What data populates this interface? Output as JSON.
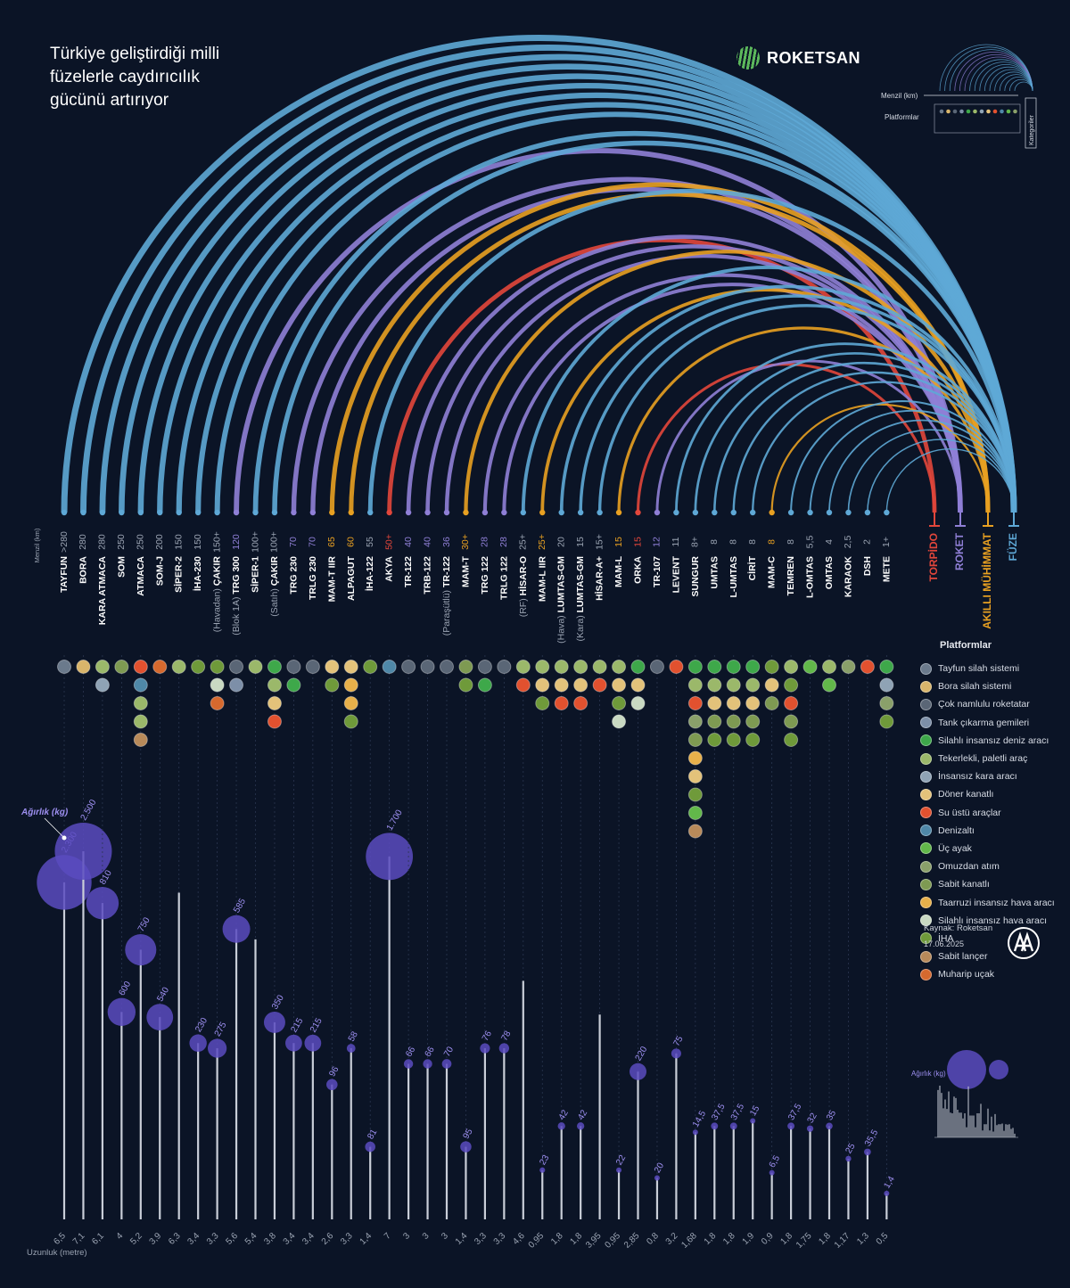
{
  "title": "Türkiye geliştirdiği milli\nfüzelerle caydırıcılık\ngücünü artırıyor",
  "brand": "ROKETSAN",
  "colors": {
    "background": "#0b1426",
    "fuze": "#5ea8d6",
    "roket": "#8f7fd6",
    "akilli_muhimmat": "#e8a021",
    "torpido": "#e2463b",
    "weight_bubble": "#5b4bbf",
    "length_line": "#c9ced8"
  },
  "key": {
    "range_label": "Menzil (km)",
    "platforms_label": "Platformlar",
    "categories_label": "Kategoriler",
    "weight_label": "Ağırlık (kg)"
  },
  "range_axis_label": "Menzil (km)",
  "length_axis_label": "Uzunluk (metre)",
  "weight_annotation": "Ağırlık (kg)",
  "categories": [
    {
      "name": "TORPİDO",
      "color": "#e2463b"
    },
    {
      "name": "ROKET",
      "color": "#8f7fd6"
    },
    {
      "name": "AKILLI MÜHİMMAT",
      "color": "#e8a021"
    },
    {
      "name": "FÜZE",
      "color": "#5ea8d6"
    }
  ],
  "platform_legend_title": "Platformlar",
  "platforms": [
    {
      "label": "Tayfun silah sistemi",
      "color": "#6b7a8c"
    },
    {
      "label": "Bora silah sistemi",
      "color": "#d9b56b"
    },
    {
      "label": "Çok namlulu roketatar",
      "color": "#5a6676"
    },
    {
      "label": "Tank çıkarma gemileri",
      "color": "#7d8fa8"
    },
    {
      "label": "Silahlı insansız deniz aracı",
      "color": "#3ea84a"
    },
    {
      "label": "Tekerlekli, paletli araç",
      "color": "#9bb86a"
    },
    {
      "label": "İnsansız kara aracı",
      "color": "#8fa3b5"
    },
    {
      "label": "Döner kanatlı",
      "color": "#e3c27a"
    },
    {
      "label": "Su üstü araçlar",
      "color": "#e2512f"
    },
    {
      "label": "Denizaltı",
      "color": "#4f88a8"
    },
    {
      "label": "Üç ayak",
      "color": "#62b84a"
    },
    {
      "label": "Omuzdan atım",
      "color": "#8aa06a"
    },
    {
      "label": "Sabit kanatlı",
      "color": "#7e9a52"
    },
    {
      "label": "Taarruzi insansız hava aracı",
      "color": "#e8b04a"
    },
    {
      "label": "Silahlı insansız hava aracı",
      "color": "#c9d9c2"
    },
    {
      "label": "İHA",
      "color": "#6f9a3a"
    },
    {
      "label": "Sabit lançer",
      "color": "#b88a5a"
    },
    {
      "label": "Muharip uçak",
      "color": "#d6692e"
    }
  ],
  "chart_data": {
    "type": "scatter",
    "title": "Türkiye geliştirdiği milli füzelerle caydırıcılık gücünü artırıyor",
    "xlabel": "",
    "ylabel": "Uzunluk (metre)",
    "series_fields": [
      "name",
      "prefix",
      "range",
      "length",
      "weight",
      "category"
    ],
    "items": [
      {
        "name": "TAYFUN",
        "prefix": "",
        "range": ">280",
        "length": "6,5",
        "weight": "2.300",
        "category": "FÜZE",
        "platforms": [
          0
        ]
      },
      {
        "name": "BORA",
        "prefix": "",
        "range": "280",
        "length": "7,1",
        "weight": "2.500",
        "category": "FÜZE",
        "platforms": [
          1
        ]
      },
      {
        "name": "KARA ATMACA",
        "prefix": "",
        "range": "280",
        "length": "6,1",
        "weight": "810",
        "category": "FÜZE",
        "platforms": [
          5,
          6
        ]
      },
      {
        "name": "SOM",
        "prefix": "",
        "range": "250",
        "length": "4",
        "weight": "600",
        "category": "FÜZE",
        "platforms": [
          12
        ]
      },
      {
        "name": "ATMACA",
        "prefix": "",
        "range": "250",
        "length": "5,2",
        "weight": "750",
        "category": "FÜZE",
        "platforms": [
          8,
          9,
          5,
          5,
          16
        ]
      },
      {
        "name": "SOM-J",
        "prefix": "",
        "range": "200",
        "length": "3,9",
        "weight": "540",
        "category": "FÜZE",
        "platforms": [
          17
        ]
      },
      {
        "name": "SİPER-2",
        "prefix": "",
        "range": "150",
        "length": "6,3",
        "weight": "",
        "category": "FÜZE",
        "platforms": [
          5
        ]
      },
      {
        "name": "İHA-230",
        "prefix": "",
        "range": "150",
        "length": "3,4",
        "weight": "230",
        "category": "FÜZE",
        "platforms": [
          15
        ]
      },
      {
        "name": "ÇAKIR",
        "prefix": "(Havadan)",
        "range": "150+",
        "length": "3,3",
        "weight": "275",
        "category": "FÜZE",
        "platforms": [
          15,
          14,
          17
        ]
      },
      {
        "name": "TRG 300",
        "prefix": "(Blok 1A)",
        "range": "120",
        "length": "5,6",
        "weight": "585",
        "category": "ROKET",
        "platforms": [
          2,
          3
        ]
      },
      {
        "name": "SİPER-1",
        "prefix": "",
        "range": "100+",
        "length": "5,4",
        "weight": "",
        "category": "FÜZE",
        "platforms": [
          5
        ]
      },
      {
        "name": "ÇAKIR",
        "prefix": "(Satıh)",
        "range": "100+",
        "length": "3,8",
        "weight": "350",
        "category": "FÜZE",
        "platforms": [
          4,
          5,
          7,
          8
        ]
      },
      {
        "name": "TRG 230",
        "prefix": "",
        "range": "70",
        "length": "3,4",
        "weight": "215",
        "category": "ROKET",
        "platforms": [
          2,
          4
        ]
      },
      {
        "name": "TRLG 230",
        "prefix": "",
        "range": "70",
        "length": "3,4",
        "weight": "215",
        "category": "ROKET",
        "platforms": [
          2
        ]
      },
      {
        "name": "MAM-T IIR",
        "prefix": "",
        "range": "65",
        "length": "2,6",
        "weight": "96",
        "category": "AKILLI MÜHİMMAT",
        "platforms": [
          7,
          15
        ]
      },
      {
        "name": "ALPAGUT",
        "prefix": "",
        "range": "60",
        "length": "3,3",
        "weight": "58",
        "category": "AKILLI MÜHİMMAT",
        "platforms": [
          7,
          13,
          13,
          15
        ]
      },
      {
        "name": "İHA-122",
        "prefix": "",
        "range": "55",
        "length": "1,4",
        "weight": "81",
        "category": "FÜZE",
        "platforms": [
          15
        ]
      },
      {
        "name": "AKYA",
        "prefix": "",
        "range": "50+",
        "length": "7",
        "weight": "1.700",
        "category": "TORPİDO",
        "platforms": [
          9
        ]
      },
      {
        "name": "TR-122",
        "prefix": "",
        "range": "40",
        "length": "3",
        "weight": "66",
        "category": "ROKET",
        "platforms": [
          2
        ]
      },
      {
        "name": "TRB-122",
        "prefix": "",
        "range": "40",
        "length": "3",
        "weight": "66",
        "category": "ROKET",
        "platforms": [
          2
        ]
      },
      {
        "name": "TR-122",
        "prefix": "(Paraşütlü)",
        "range": "36",
        "length": "3",
        "weight": "70",
        "category": "ROKET",
        "platforms": [
          2
        ]
      },
      {
        "name": "MAM-T",
        "prefix": "",
        "range": "30+",
        "length": "1,4",
        "weight": "95",
        "category": "AKILLI MÜHİMMAT",
        "platforms": [
          12,
          15
        ]
      },
      {
        "name": "TRG 122",
        "prefix": "",
        "range": "28",
        "length": "3,3",
        "weight": "76",
        "category": "ROKET",
        "platforms": [
          2,
          4
        ]
      },
      {
        "name": "TRLG 122",
        "prefix": "",
        "range": "28",
        "length": "3,3",
        "weight": "78",
        "category": "ROKET",
        "platforms": [
          2
        ]
      },
      {
        "name": "HİSAR-O",
        "prefix": "(RF)",
        "range": "25+",
        "length": "4,6",
        "weight": "",
        "category": "FÜZE",
        "platforms": [
          5,
          8
        ]
      },
      {
        "name": "MAM-L IIR",
        "prefix": "",
        "range": "25+",
        "length": "0,95",
        "weight": "23",
        "category": "AKILLI MÜHİMMAT",
        "platforms": [
          5,
          7,
          15
        ]
      },
      {
        "name": "LUMTAS-GM",
        "prefix": "(Hava)",
        "range": "20",
        "length": "1,8",
        "weight": "42",
        "category": "FÜZE",
        "platforms": [
          5,
          7,
          8
        ]
      },
      {
        "name": "LUMTAS-GM",
        "prefix": "(Kara)",
        "range": "15",
        "length": "1,8",
        "weight": "42",
        "category": "FÜZE",
        "platforms": [
          5,
          7,
          8
        ]
      },
      {
        "name": "HİSAR-A+",
        "prefix": "",
        "range": "15+",
        "length": "3,95",
        "weight": "",
        "category": "FÜZE",
        "platforms": [
          5,
          8
        ]
      },
      {
        "name": "MAM-L",
        "prefix": "",
        "range": "15",
        "length": "0,95",
        "weight": "22",
        "category": "AKILLI MÜHİMMAT",
        "platforms": [
          5,
          7,
          15,
          14
        ]
      },
      {
        "name": "ORKA",
        "prefix": "",
        "range": "15",
        "length": "2,85",
        "weight": "220",
        "category": "TORPİDO",
        "platforms": [
          4,
          7,
          14
        ]
      },
      {
        "name": "TR-107",
        "prefix": "",
        "range": "12",
        "length": "0,8",
        "weight": "20",
        "category": "ROKET",
        "platforms": [
          2
        ]
      },
      {
        "name": "LEVENT",
        "prefix": "",
        "range": "11",
        "length": "3,2",
        "weight": "75",
        "category": "FÜZE",
        "platforms": [
          8
        ]
      },
      {
        "name": "SUNGUR",
        "prefix": "",
        "range": "8+",
        "length": "1,68",
        "weight": "14,5",
        "category": "FÜZE",
        "platforms": [
          4,
          5,
          8,
          11,
          12,
          13,
          7,
          15,
          10,
          16
        ]
      },
      {
        "name": "UMTAS",
        "prefix": "",
        "range": "8",
        "length": "1,8",
        "weight": "37,5",
        "category": "FÜZE",
        "platforms": [
          4,
          5,
          7,
          12,
          15
        ]
      },
      {
        "name": "L-UMTAS",
        "prefix": "",
        "range": "8",
        "length": "1,8",
        "weight": "37,5",
        "category": "FÜZE",
        "platforms": [
          4,
          5,
          7,
          12,
          15
        ]
      },
      {
        "name": "CİRİT",
        "prefix": "",
        "range": "8",
        "length": "1,9",
        "weight": "15",
        "category": "FÜZE",
        "platforms": [
          4,
          5,
          7,
          12,
          15
        ]
      },
      {
        "name": "MAM-C",
        "prefix": "",
        "range": "8",
        "length": "0,9",
        "weight": "6,5",
        "category": "AKILLI MÜHİMMAT",
        "platforms": [
          15,
          7,
          12
        ]
      },
      {
        "name": "TEMREN",
        "prefix": "",
        "range": "8",
        "length": "1,8",
        "weight": "37,5",
        "category": "FÜZE",
        "platforms": [
          5,
          15,
          8,
          12,
          15
        ]
      },
      {
        "name": "L-OMTAS",
        "prefix": "",
        "range": "5,5",
        "length": "1,75",
        "weight": "32",
        "category": "FÜZE",
        "platforms": [
          10
        ]
      },
      {
        "name": "OMTAS",
        "prefix": "",
        "range": "4",
        "length": "1,8",
        "weight": "35",
        "category": "FÜZE",
        "platforms": [
          5,
          10
        ]
      },
      {
        "name": "KARAOK",
        "prefix": "",
        "range": "2,5",
        "length": "1,17",
        "weight": "25",
        "category": "FÜZE",
        "platforms": [
          11
        ]
      },
      {
        "name": "DSH",
        "prefix": "",
        "range": "2",
        "length": "1,3",
        "weight": "35,5",
        "category": "FÜZE",
        "platforms": [
          8
        ]
      },
      {
        "name": "METE",
        "prefix": "",
        "range": "1+",
        "length": "0,5",
        "weight": "1,4",
        "category": "FÜZE",
        "platforms": [
          4,
          6,
          11,
          15
        ]
      }
    ]
  },
  "source": "Kaynak: Roketsan",
  "date": "17.06.2025"
}
